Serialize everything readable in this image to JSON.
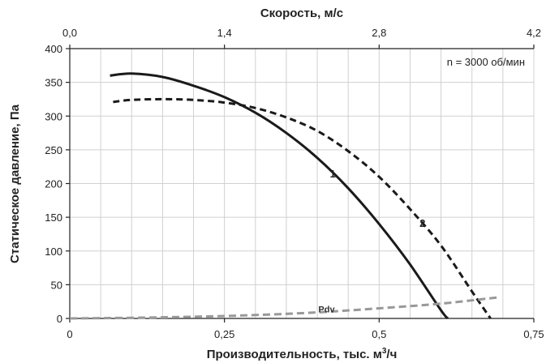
{
  "chart_data": {
    "type": "line",
    "title": "",
    "xlabel": "Производительность, тыс. м³/ч",
    "xlabel_main": "Производительность, тыс. м",
    "xlabel_sup": "3",
    "xlabel_tail": "/ч",
    "x2label": "Скорость, м/с",
    "ylabel": "Статическое давление, Па",
    "xlim": [
      0,
      0.75
    ],
    "x2lim": [
      0,
      4.2
    ],
    "ylim": [
      0,
      400
    ],
    "x_ticks": [
      {
        "value": 0,
        "label": "0"
      },
      {
        "value": 0.25,
        "label": "0,25"
      },
      {
        "value": 0.5,
        "label": "0,5"
      },
      {
        "value": 0.75,
        "label": "0,75"
      }
    ],
    "x2_ticks": [
      {
        "value": 0,
        "label": "0,0"
      },
      {
        "value": 1.4,
        "label": "1,4"
      },
      {
        "value": 2.8,
        "label": "2,8"
      },
      {
        "value": 4.2,
        "label": "4,2"
      }
    ],
    "y_ticks": [
      {
        "value": 0,
        "label": "0"
      },
      {
        "value": 50,
        "label": "50"
      },
      {
        "value": 100,
        "label": "100"
      },
      {
        "value": 150,
        "label": "150"
      },
      {
        "value": 200,
        "label": "200"
      },
      {
        "value": 250,
        "label": "250"
      },
      {
        "value": 300,
        "label": "300"
      },
      {
        "value": 350,
        "label": "350"
      },
      {
        "value": 400,
        "label": "400"
      }
    ],
    "grid": true,
    "annotation": "n = 3000 об/мин",
    "series": [
      {
        "name": "1",
        "style": "solid",
        "color": "#1a1a1a",
        "x": [
          0.065,
          0.1,
          0.15,
          0.2,
          0.25,
          0.3,
          0.35,
          0.4,
          0.45,
          0.5,
          0.55,
          0.6,
          0.611
        ],
        "y": [
          360,
          363,
          358,
          345,
          328,
          305,
          275,
          238,
          193,
          140,
          80,
          12,
          0
        ]
      },
      {
        "name": "2",
        "style": "dashed",
        "color": "#1a1a1a",
        "x": [
          0.07,
          0.1,
          0.15,
          0.2,
          0.25,
          0.3,
          0.35,
          0.4,
          0.45,
          0.5,
          0.55,
          0.6,
          0.65,
          0.68
        ],
        "y": [
          321,
          324,
          325,
          324,
          320,
          312,
          298,
          278,
          248,
          210,
          162,
          108,
          40,
          0
        ]
      },
      {
        "name": "Pdv",
        "style": "dashed",
        "color": "#999999",
        "x": [
          0,
          0.1,
          0.2,
          0.3,
          0.4,
          0.5,
          0.6,
          0.69
        ],
        "y": [
          0,
          1,
          2.5,
          5,
          9,
          15,
          22,
          31
        ]
      }
    ],
    "curve_labels": [
      {
        "series": "1",
        "text": "1",
        "x": 0.425,
        "y": 215
      },
      {
        "series": "2",
        "text": "2",
        "x": 0.57,
        "y": 142
      },
      {
        "series": "Pdv",
        "text": "Pdv",
        "x": 0.415,
        "y": 15
      }
    ]
  }
}
